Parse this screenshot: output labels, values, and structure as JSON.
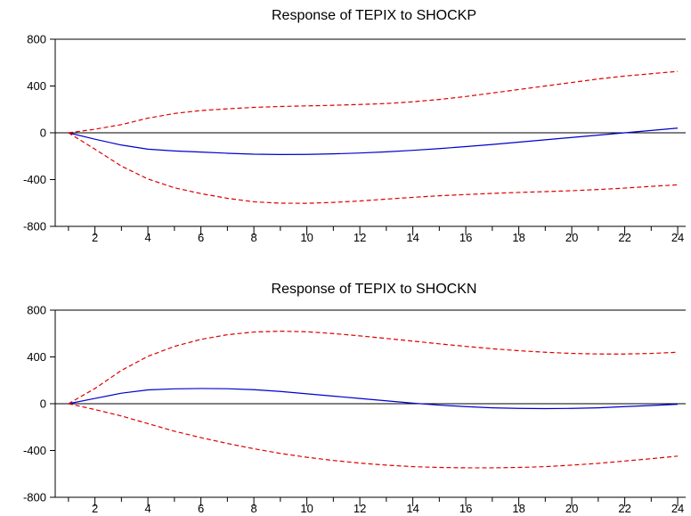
{
  "chart_data": [
    {
      "type": "line",
      "title": "Response of TEPIX to SHOCKP",
      "xlabel": "",
      "ylabel": "",
      "x": [
        1,
        2,
        3,
        4,
        5,
        6,
        7,
        8,
        9,
        10,
        11,
        12,
        13,
        14,
        15,
        16,
        17,
        18,
        19,
        20,
        21,
        22,
        23,
        24
      ],
      "xlim": [
        0.5,
        24.3
      ],
      "ylim": [
        -800,
        800
      ],
      "yticks": [
        -800,
        -400,
        0,
        400,
        800
      ],
      "xticks": [
        2,
        4,
        6,
        8,
        10,
        12,
        14,
        16,
        18,
        20,
        22,
        24
      ],
      "grid": false,
      "series": [
        {
          "style": "solid",
          "color": "#0000cc",
          "values": [
            0,
            -55,
            -105,
            -140,
            -155,
            -165,
            -175,
            -183,
            -186,
            -185,
            -180,
            -173,
            -163,
            -150,
            -135,
            -118,
            -100,
            -80,
            -60,
            -40,
            -20,
            0,
            20,
            40
          ]
        },
        {
          "style": "dashed",
          "color": "#dd0000",
          "values": [
            0,
            30,
            70,
            125,
            165,
            190,
            205,
            217,
            225,
            230,
            235,
            242,
            250,
            265,
            285,
            310,
            340,
            370,
            400,
            430,
            460,
            485,
            505,
            525
          ]
        },
        {
          "style": "dashed",
          "color": "#dd0000",
          "values": [
            0,
            -140,
            -285,
            -395,
            -470,
            -520,
            -560,
            -590,
            -602,
            -603,
            -595,
            -583,
            -567,
            -552,
            -538,
            -528,
            -518,
            -510,
            -503,
            -495,
            -485,
            -473,
            -458,
            -445
          ]
        }
      ]
    },
    {
      "type": "line",
      "title": "Response of TEPIX to SHOCKN",
      "xlabel": "",
      "ylabel": "",
      "x": [
        1,
        2,
        3,
        4,
        5,
        6,
        7,
        8,
        9,
        10,
        11,
        12,
        13,
        14,
        15,
        16,
        17,
        18,
        19,
        20,
        21,
        22,
        23,
        24
      ],
      "xlim": [
        0.5,
        24.3
      ],
      "ylim": [
        -800,
        800
      ],
      "yticks": [
        -800,
        -400,
        0,
        400,
        800
      ],
      "xticks": [
        2,
        4,
        6,
        8,
        10,
        12,
        14,
        16,
        18,
        20,
        22,
        24
      ],
      "grid": false,
      "series": [
        {
          "style": "solid",
          "color": "#0000cc",
          "values": [
            0,
            45,
            90,
            118,
            127,
            130,
            128,
            120,
            105,
            85,
            65,
            45,
            25,
            5,
            -12,
            -25,
            -35,
            -40,
            -42,
            -40,
            -35,
            -25,
            -15,
            -5
          ]
        },
        {
          "style": "dashed",
          "color": "#dd0000",
          "values": [
            0,
            130,
            285,
            405,
            490,
            550,
            590,
            613,
            620,
            615,
            600,
            580,
            558,
            535,
            512,
            490,
            470,
            453,
            440,
            430,
            425,
            425,
            430,
            440
          ]
        },
        {
          "style": "dashed",
          "color": "#dd0000",
          "values": [
            0,
            -50,
            -105,
            -170,
            -235,
            -290,
            -340,
            -385,
            -425,
            -458,
            -485,
            -508,
            -525,
            -538,
            -545,
            -548,
            -548,
            -545,
            -538,
            -525,
            -510,
            -490,
            -470,
            -448
          ]
        }
      ]
    }
  ]
}
